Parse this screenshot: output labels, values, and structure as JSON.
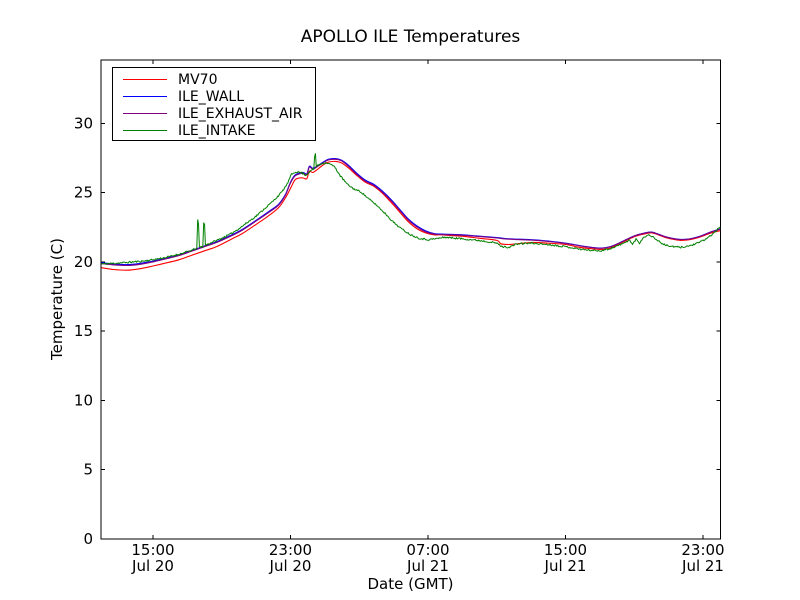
{
  "chart_data": {
    "type": "line",
    "title": "APOLLO ILE Temperatures",
    "xlabel": "Date (GMT)",
    "ylabel": "Temperature (C)",
    "grid": false,
    "legend_position": "upper-left",
    "x_axis": {
      "unit": "hours since Jul 20 12:00 GMT",
      "range_hours": [
        0,
        36
      ],
      "ticks": [
        {
          "t": 3,
          "time": "15:00",
          "date": "Jul 20"
        },
        {
          "t": 11,
          "time": "23:00",
          "date": "Jul 20"
        },
        {
          "t": 19,
          "time": "07:00",
          "date": "Jul 21"
        },
        {
          "t": 27,
          "time": "15:00",
          "date": "Jul 21"
        },
        {
          "t": 35,
          "time": "23:00",
          "date": "Jul 21"
        }
      ]
    },
    "y_axis": {
      "ylim": [
        0,
        34.55
      ],
      "ticks": [
        0,
        5,
        10,
        15,
        20,
        25,
        30
      ]
    },
    "colors": {
      "frame": "#000000",
      "text": "#000000",
      "background": "#ffffff"
    },
    "series": [
      {
        "name": "MV70",
        "color": "#ff0000",
        "style": "smooth",
        "noise": 0,
        "points": [
          [
            0,
            19.58
          ],
          [
            0.7,
            19.45
          ],
          [
            1.5,
            19.4
          ],
          [
            2.2,
            19.5
          ],
          [
            3,
            19.7
          ],
          [
            3.7,
            19.9
          ],
          [
            4.5,
            20.15
          ],
          [
            5.2,
            20.45
          ],
          [
            6,
            20.8
          ],
          [
            6.7,
            21.1
          ],
          [
            7.5,
            21.6
          ],
          [
            8.2,
            22.05
          ],
          [
            9,
            22.7
          ],
          [
            9.7,
            23.3
          ],
          [
            10.3,
            23.9
          ],
          [
            10.7,
            24.6
          ],
          [
            11,
            25.3
          ],
          [
            11.25,
            25.9
          ],
          [
            11.5,
            26.05
          ],
          [
            11.75,
            26.05
          ],
          [
            11.95,
            26.0
          ],
          [
            12.1,
            26.55
          ],
          [
            12.3,
            26.45
          ],
          [
            12.6,
            26.7
          ],
          [
            12.9,
            27.0
          ],
          [
            13.2,
            27.2
          ],
          [
            13.6,
            27.25
          ],
          [
            13.95,
            27.15
          ],
          [
            14.35,
            26.8
          ],
          [
            14.85,
            26.25
          ],
          [
            15.35,
            25.75
          ],
          [
            15.85,
            25.45
          ],
          [
            16.35,
            24.95
          ],
          [
            16.85,
            24.3
          ],
          [
            17.35,
            23.6
          ],
          [
            17.85,
            22.9
          ],
          [
            18.35,
            22.4
          ],
          [
            18.85,
            22.1
          ],
          [
            19.35,
            21.95
          ],
          [
            19.8,
            21.95
          ],
          [
            20.3,
            21.9
          ],
          [
            21,
            21.85
          ],
          [
            22,
            21.7
          ],
          [
            23,
            21.55
          ],
          [
            23.25,
            21.3
          ],
          [
            23.7,
            21.25
          ],
          [
            24.2,
            21.3
          ],
          [
            25,
            21.4
          ],
          [
            26,
            21.35
          ],
          [
            27,
            21.25
          ],
          [
            27.8,
            21.05
          ],
          [
            28.5,
            20.95
          ],
          [
            29.1,
            20.9
          ],
          [
            29.6,
            21.0
          ],
          [
            30.1,
            21.28
          ],
          [
            30.6,
            21.58
          ],
          [
            31.1,
            21.86
          ],
          [
            31.6,
            22.02
          ],
          [
            32,
            22.1
          ],
          [
            32.4,
            21.95
          ],
          [
            32.8,
            21.76
          ],
          [
            33.2,
            21.64
          ],
          [
            33.7,
            21.55
          ],
          [
            34.2,
            21.6
          ],
          [
            34.7,
            21.74
          ],
          [
            35.1,
            21.92
          ],
          [
            35.5,
            22.1
          ],
          [
            36,
            22.25
          ]
        ]
      },
      {
        "name": "ILE_WALL",
        "color": "#0000ff",
        "style": "smooth",
        "noise": 0,
        "points": [
          [
            0,
            19.95
          ],
          [
            0.7,
            19.85
          ],
          [
            1.5,
            19.8
          ],
          [
            2.2,
            19.88
          ],
          [
            3,
            20.05
          ],
          [
            3.7,
            20.25
          ],
          [
            4.5,
            20.5
          ],
          [
            5.2,
            20.8
          ],
          [
            6,
            21.15
          ],
          [
            6.7,
            21.45
          ],
          [
            7.5,
            21.9
          ],
          [
            8.2,
            22.35
          ],
          [
            9,
            23.0
          ],
          [
            9.7,
            23.6
          ],
          [
            10.3,
            24.15
          ],
          [
            10.7,
            24.85
          ],
          [
            11,
            25.75
          ],
          [
            11.25,
            26.25
          ],
          [
            11.5,
            26.4
          ],
          [
            11.75,
            26.45
          ],
          [
            11.95,
            26.35
          ],
          [
            12.1,
            26.9
          ],
          [
            12.3,
            26.75
          ],
          [
            12.6,
            26.95
          ],
          [
            12.9,
            27.2
          ],
          [
            13.2,
            27.4
          ],
          [
            13.6,
            27.45
          ],
          [
            13.95,
            27.35
          ],
          [
            14.35,
            27.0
          ],
          [
            14.85,
            26.4
          ],
          [
            15.35,
            25.9
          ],
          [
            15.85,
            25.6
          ],
          [
            16.35,
            25.1
          ],
          [
            16.85,
            24.5
          ],
          [
            17.35,
            23.8
          ],
          [
            17.85,
            23.1
          ],
          [
            18.35,
            22.6
          ],
          [
            18.85,
            22.25
          ],
          [
            19.35,
            22.05
          ],
          [
            19.8,
            22.0
          ],
          [
            21,
            21.95
          ],
          [
            22,
            21.85
          ],
          [
            23,
            21.75
          ],
          [
            23.5,
            21.68
          ],
          [
            24,
            21.65
          ],
          [
            25,
            21.6
          ],
          [
            26,
            21.5
          ],
          [
            27,
            21.35
          ],
          [
            27.8,
            21.18
          ],
          [
            28.5,
            21.05
          ],
          [
            29.1,
            21.0
          ],
          [
            29.6,
            21.1
          ],
          [
            30.1,
            21.35
          ],
          [
            30.6,
            21.65
          ],
          [
            31.1,
            21.92
          ],
          [
            31.6,
            22.08
          ],
          [
            32,
            22.15
          ],
          [
            32.4,
            22.0
          ],
          [
            32.8,
            21.82
          ],
          [
            33.2,
            21.7
          ],
          [
            33.7,
            21.62
          ],
          [
            34.2,
            21.66
          ],
          [
            34.7,
            21.8
          ],
          [
            35.1,
            21.98
          ],
          [
            35.5,
            22.18
          ],
          [
            36,
            22.38
          ]
        ]
      },
      {
        "name": "ILE_EXHAUST_AIR",
        "color": "#800080",
        "style": "smooth",
        "noise": 0,
        "points": [
          [
            0,
            19.88
          ],
          [
            0.7,
            19.78
          ],
          [
            1.5,
            19.74
          ],
          [
            2.2,
            19.82
          ],
          [
            3,
            20.0
          ],
          [
            3.7,
            20.2
          ],
          [
            4.5,
            20.45
          ],
          [
            5.2,
            20.75
          ],
          [
            6,
            21.1
          ],
          [
            6.7,
            21.4
          ],
          [
            7.5,
            21.84
          ],
          [
            8.2,
            22.29
          ],
          [
            9,
            22.94
          ],
          [
            9.7,
            23.54
          ],
          [
            10.3,
            24.09
          ],
          [
            10.7,
            24.79
          ],
          [
            11,
            25.69
          ],
          [
            11.25,
            26.19
          ],
          [
            11.5,
            26.34
          ],
          [
            11.75,
            26.39
          ],
          [
            11.95,
            26.29
          ],
          [
            12.1,
            26.84
          ],
          [
            12.3,
            26.69
          ],
          [
            12.6,
            26.9
          ],
          [
            12.9,
            27.15
          ],
          [
            13.2,
            27.35
          ],
          [
            13.6,
            27.4
          ],
          [
            13.95,
            27.3
          ],
          [
            14.35,
            26.92
          ],
          [
            14.85,
            26.32
          ],
          [
            15.35,
            25.82
          ],
          [
            15.85,
            25.52
          ],
          [
            16.35,
            25.02
          ],
          [
            16.85,
            24.42
          ],
          [
            17.35,
            23.72
          ],
          [
            17.85,
            23.02
          ],
          [
            18.35,
            22.52
          ],
          [
            18.85,
            22.18
          ],
          [
            19.35,
            22.0
          ],
          [
            19.8,
            21.97
          ],
          [
            21,
            21.92
          ],
          [
            22,
            21.82
          ],
          [
            23,
            21.72
          ],
          [
            23.5,
            21.65
          ],
          [
            24,
            21.62
          ],
          [
            25,
            21.57
          ],
          [
            26,
            21.47
          ],
          [
            27,
            21.33
          ],
          [
            27.8,
            21.16
          ],
          [
            28.5,
            21.03
          ],
          [
            29.1,
            20.98
          ],
          [
            29.6,
            21.08
          ],
          [
            30.1,
            21.34
          ],
          [
            30.6,
            21.64
          ],
          [
            31.1,
            21.91
          ],
          [
            31.6,
            22.07
          ],
          [
            32,
            22.14
          ],
          [
            32.4,
            21.99
          ],
          [
            32.8,
            21.81
          ],
          [
            33.2,
            21.69
          ],
          [
            33.7,
            21.61
          ],
          [
            34.2,
            21.65
          ],
          [
            34.7,
            21.79
          ],
          [
            35.1,
            21.97
          ],
          [
            35.5,
            22.17
          ],
          [
            36,
            22.35
          ]
        ]
      },
      {
        "name": "ILE_INTAKE",
        "color": "#008000",
        "style": "noisy",
        "noise": 0.06,
        "noise_seed": 11,
        "sample_step_hours": 0.05,
        "points": [
          [
            0,
            19.85
          ],
          [
            0.8,
            19.9
          ],
          [
            1.6,
            19.97
          ],
          [
            2.4,
            20.05
          ],
          [
            3,
            20.15
          ],
          [
            3.8,
            20.33
          ],
          [
            4.6,
            20.58
          ],
          [
            5.3,
            20.85
          ],
          [
            5.55,
            21.0
          ],
          [
            5.62,
            23.8
          ],
          [
            5.7,
            21.05
          ],
          [
            5.9,
            21.1
          ],
          [
            5.97,
            23.55
          ],
          [
            6.05,
            21.2
          ],
          [
            6.5,
            21.45
          ],
          [
            7,
            21.7
          ],
          [
            7.5,
            22.0
          ],
          [
            8,
            22.4
          ],
          [
            8.5,
            22.85
          ],
          [
            9,
            23.3
          ],
          [
            9.5,
            23.85
          ],
          [
            10,
            24.4
          ],
          [
            10.5,
            25.05
          ],
          [
            10.8,
            25.6
          ],
          [
            11.05,
            26.3
          ],
          [
            11.3,
            26.5
          ],
          [
            11.6,
            26.45
          ],
          [
            11.9,
            26.25
          ],
          [
            12.2,
            26.6
          ],
          [
            12.36,
            26.7
          ],
          [
            12.43,
            28.2
          ],
          [
            12.5,
            26.9
          ],
          [
            12.8,
            27.1
          ],
          [
            13.1,
            27.15
          ],
          [
            13.4,
            27.0
          ],
          [
            13.6,
            26.8
          ],
          [
            13.9,
            26.2
          ],
          [
            14.3,
            25.6
          ],
          [
            14.7,
            25.25
          ],
          [
            15.1,
            25.05
          ],
          [
            15.5,
            24.6
          ],
          [
            16,
            24.1
          ],
          [
            16.5,
            23.5
          ],
          [
            17,
            22.85
          ],
          [
            17.5,
            22.35
          ],
          [
            18,
            21.95
          ],
          [
            18.5,
            21.7
          ],
          [
            19,
            21.6
          ],
          [
            19.5,
            21.68
          ],
          [
            20,
            21.78
          ],
          [
            20.7,
            21.7
          ],
          [
            21.5,
            21.6
          ],
          [
            22.3,
            21.5
          ],
          [
            23,
            21.35
          ],
          [
            23.3,
            21.1
          ],
          [
            23.7,
            21.05
          ],
          [
            24.2,
            21.3
          ],
          [
            25,
            21.35
          ],
          [
            26,
            21.25
          ],
          [
            27,
            21.1
          ],
          [
            27.7,
            20.95
          ],
          [
            28.3,
            20.85
          ],
          [
            29,
            20.8
          ],
          [
            29.6,
            20.95
          ],
          [
            30.1,
            21.2
          ],
          [
            30.5,
            21.4
          ],
          [
            30.7,
            21.6
          ],
          [
            30.9,
            21.25
          ],
          [
            31.1,
            21.65
          ],
          [
            31.3,
            21.35
          ],
          [
            31.55,
            21.8
          ],
          [
            31.9,
            21.95
          ],
          [
            32.3,
            21.6
          ],
          [
            32.7,
            21.25
          ],
          [
            33.2,
            21.1
          ],
          [
            33.7,
            21.05
          ],
          [
            34.2,
            21.15
          ],
          [
            34.7,
            21.35
          ],
          [
            35.1,
            21.6
          ],
          [
            35.4,
            21.85
          ],
          [
            35.7,
            22.15
          ],
          [
            36,
            22.55
          ]
        ]
      }
    ]
  }
}
